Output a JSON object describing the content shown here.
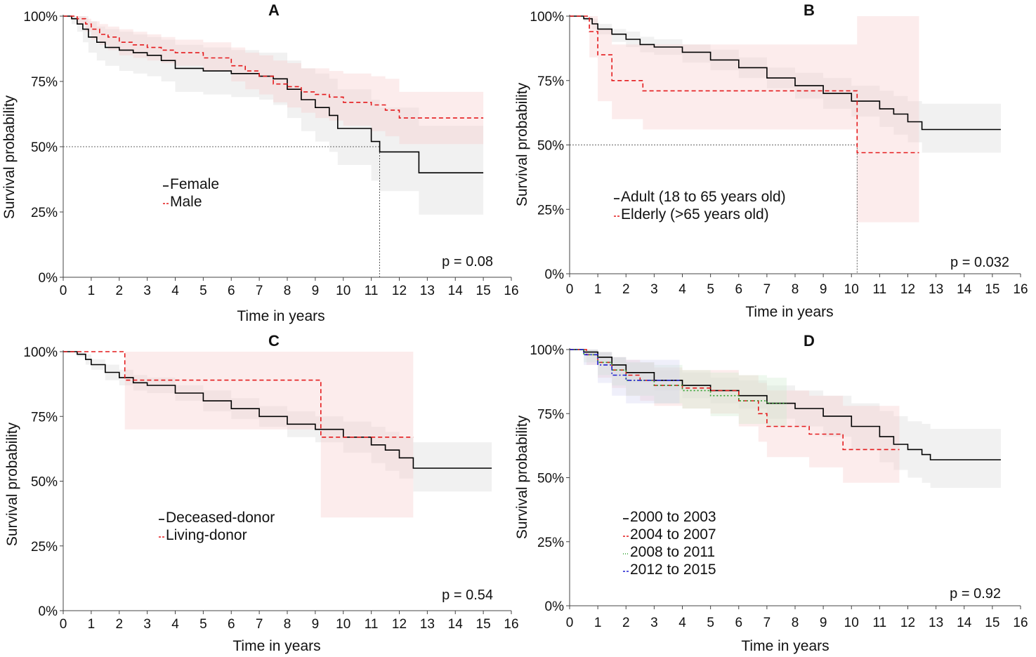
{
  "chart_data": [
    {
      "type": "line",
      "subtype": "kaplan-meier",
      "panel": "A",
      "xlabel": "Time in years",
      "ylabel": "Survival probability",
      "xlim": [
        0,
        16
      ],
      "ylim": [
        0,
        1
      ],
      "x_ticks": [
        "0",
        "1",
        "2",
        "3",
        "4",
        "5",
        "6",
        "7",
        "8",
        "9",
        "10",
        "11",
        "12",
        "13",
        "14",
        "15",
        "16"
      ],
      "y_ticks": [
        "0%",
        "25%",
        "50%",
        "75%",
        "100%"
      ],
      "p_value": "p = 0.08",
      "legend_position": "center-left",
      "median_guide": {
        "y": 0.5,
        "x": 11.3
      },
      "series": [
        {
          "name": "Female",
          "color": "#000000",
          "dash": "solid",
          "band_color": "#d8d8d8",
          "x": [
            0,
            0.3,
            0.5,
            0.7,
            0.9,
            1.2,
            1.5,
            2.0,
            2.5,
            3.0,
            3.5,
            4.0,
            5.0,
            6.0,
            7.0,
            7.5,
            8.0,
            8.5,
            9.0,
            9.5,
            9.8,
            10.5,
            11.0,
            11.3,
            12.0,
            12.7,
            15.0
          ],
          "y": [
            1.0,
            0.99,
            0.97,
            0.95,
            0.92,
            0.9,
            0.88,
            0.87,
            0.86,
            0.85,
            0.83,
            0.8,
            0.79,
            0.78,
            0.77,
            0.76,
            0.72,
            0.68,
            0.65,
            0.62,
            0.57,
            0.57,
            0.52,
            0.48,
            0.48,
            0.4,
            0.4
          ],
          "upper": [
            1.0,
            1.0,
            1.0,
            1.0,
            0.98,
            0.96,
            0.95,
            0.94,
            0.93,
            0.92,
            0.91,
            0.89,
            0.88,
            0.87,
            0.86,
            0.86,
            0.83,
            0.8,
            0.78,
            0.76,
            0.72,
            0.72,
            0.68,
            0.65,
            0.65,
            0.58,
            0.58
          ],
          "lower": [
            1.0,
            0.97,
            0.94,
            0.9,
            0.86,
            0.83,
            0.81,
            0.79,
            0.78,
            0.77,
            0.75,
            0.71,
            0.7,
            0.69,
            0.68,
            0.66,
            0.61,
            0.56,
            0.52,
            0.48,
            0.43,
            0.43,
            0.37,
            0.33,
            0.33,
            0.24,
            0.24
          ]
        },
        {
          "name": "Male",
          "color": "#e41a1c",
          "dash": "dashed",
          "band_color": "#f6c9c9",
          "x": [
            0,
            0.5,
            0.8,
            1.0,
            1.3,
            1.6,
            2.0,
            2.5,
            3.0,
            3.5,
            4.0,
            5.0,
            6.0,
            6.5,
            7.0,
            7.5,
            8.0,
            8.5,
            9.0,
            9.5,
            10.0,
            11.0,
            11.5,
            12.0,
            15.0
          ],
          "y": [
            1.0,
            0.99,
            0.97,
            0.95,
            0.93,
            0.92,
            0.9,
            0.89,
            0.88,
            0.87,
            0.86,
            0.84,
            0.81,
            0.79,
            0.77,
            0.74,
            0.73,
            0.71,
            0.7,
            0.69,
            0.67,
            0.66,
            0.64,
            0.61,
            0.61
          ],
          "upper": [
            1.0,
            1.0,
            0.99,
            0.98,
            0.97,
            0.96,
            0.95,
            0.94,
            0.93,
            0.92,
            0.91,
            0.9,
            0.88,
            0.86,
            0.85,
            0.83,
            0.82,
            0.8,
            0.8,
            0.79,
            0.78,
            0.77,
            0.76,
            0.71,
            0.71
          ],
          "lower": [
            1.0,
            0.97,
            0.94,
            0.91,
            0.89,
            0.87,
            0.85,
            0.84,
            0.83,
            0.82,
            0.81,
            0.79,
            0.75,
            0.72,
            0.7,
            0.67,
            0.65,
            0.63,
            0.61,
            0.6,
            0.58,
            0.56,
            0.54,
            0.51,
            0.51
          ]
        }
      ]
    },
    {
      "type": "line",
      "subtype": "kaplan-meier",
      "panel": "B",
      "xlabel": "Time in years",
      "ylabel": "Survival probability",
      "xlim": [
        0,
        16
      ],
      "ylim": [
        0,
        1
      ],
      "x_ticks": [
        "0",
        "1",
        "2",
        "3",
        "4",
        "5",
        "6",
        "7",
        "8",
        "9",
        "10",
        "11",
        "12",
        "13",
        "14",
        "15",
        "16"
      ],
      "y_ticks": [
        "0%",
        "25%",
        "50%",
        "75%",
        "100%"
      ],
      "p_value": "p = 0.032",
      "legend_position": "center-left",
      "median_guide": {
        "y": 0.5,
        "x": 10.2
      },
      "series": [
        {
          "name": "Adult (18 to 65 years old)",
          "color": "#000000",
          "dash": "solid",
          "band_color": "#d8d8d8",
          "x": [
            0,
            0.5,
            0.8,
            1.0,
            1.5,
            2.0,
            2.5,
            3.0,
            4.0,
            5.0,
            6.0,
            7.0,
            8.0,
            9.0,
            10.0,
            11.0,
            11.5,
            12.0,
            12.5,
            15.3
          ],
          "y": [
            1.0,
            0.99,
            0.97,
            0.95,
            0.93,
            0.91,
            0.89,
            0.88,
            0.86,
            0.83,
            0.8,
            0.76,
            0.73,
            0.7,
            0.67,
            0.64,
            0.62,
            0.59,
            0.56,
            0.56
          ],
          "upper": [
            1.0,
            1.0,
            0.99,
            0.97,
            0.95,
            0.94,
            0.92,
            0.91,
            0.89,
            0.87,
            0.84,
            0.8,
            0.78,
            0.76,
            0.73,
            0.71,
            0.69,
            0.67,
            0.66,
            0.66
          ],
          "lower": [
            1.0,
            0.98,
            0.95,
            0.93,
            0.9,
            0.88,
            0.86,
            0.85,
            0.82,
            0.79,
            0.76,
            0.72,
            0.68,
            0.64,
            0.61,
            0.57,
            0.54,
            0.51,
            0.47,
            0.47
          ]
        },
        {
          "name": "Elderly (>65 years old)",
          "color": "#e41a1c",
          "dash": "dashed",
          "band_color": "#f6c9c9",
          "x": [
            0,
            0.7,
            1.0,
            1.5,
            2.6,
            10.2,
            12.4
          ],
          "y": [
            1.0,
            0.94,
            0.85,
            0.75,
            0.71,
            0.47,
            0.47
          ],
          "upper": [
            1.0,
            1.0,
            0.95,
            0.89,
            0.89,
            1.0,
            1.0
          ],
          "lower": [
            1.0,
            0.84,
            0.67,
            0.6,
            0.56,
            0.2,
            0.2
          ]
        }
      ]
    },
    {
      "type": "line",
      "subtype": "kaplan-meier",
      "panel": "C",
      "xlabel": "Time in years",
      "ylabel": "Survival probability",
      "xlim": [
        0,
        16
      ],
      "ylim": [
        0,
        1
      ],
      "x_ticks": [
        "0",
        "1",
        "2",
        "3",
        "4",
        "5",
        "6",
        "7",
        "8",
        "9",
        "10",
        "11",
        "12",
        "13",
        "14",
        "15",
        "16"
      ],
      "y_ticks": [
        "0%",
        "25%",
        "50%",
        "75%",
        "100%"
      ],
      "p_value": "p = 0.54",
      "legend_position": "bottom-left",
      "series": [
        {
          "name": "Deceased-donor",
          "color": "#000000",
          "dash": "solid",
          "band_color": "#d8d8d8",
          "x": [
            0,
            0.5,
            0.8,
            1.0,
            1.5,
            2.0,
            2.5,
            3.0,
            4.0,
            5.0,
            6.0,
            7.0,
            8.0,
            9.0,
            10.0,
            11.0,
            11.5,
            12.0,
            12.5,
            15.3
          ],
          "y": [
            1.0,
            0.99,
            0.97,
            0.95,
            0.92,
            0.9,
            0.88,
            0.87,
            0.84,
            0.81,
            0.78,
            0.75,
            0.72,
            0.7,
            0.67,
            0.64,
            0.62,
            0.59,
            0.55,
            0.55
          ],
          "upper": [
            1.0,
            1.0,
            0.99,
            0.97,
            0.95,
            0.93,
            0.91,
            0.9,
            0.87,
            0.85,
            0.82,
            0.79,
            0.77,
            0.75,
            0.73,
            0.71,
            0.69,
            0.67,
            0.65,
            0.65
          ],
          "lower": [
            1.0,
            0.98,
            0.95,
            0.93,
            0.89,
            0.87,
            0.85,
            0.84,
            0.81,
            0.77,
            0.74,
            0.71,
            0.67,
            0.65,
            0.61,
            0.57,
            0.54,
            0.51,
            0.46,
            0.46
          ]
        },
        {
          "name": "Living-donor",
          "color": "#e41a1c",
          "dash": "dashed",
          "band_color": "#f6c9c9",
          "x": [
            0,
            2.2,
            9.2,
            12.5
          ],
          "y": [
            1.0,
            0.89,
            0.67,
            0.67
          ],
          "upper": [
            1.0,
            1.0,
            1.0,
            1.0
          ],
          "lower": [
            1.0,
            0.7,
            0.36,
            0.36
          ]
        }
      ]
    },
    {
      "type": "line",
      "subtype": "kaplan-meier",
      "panel": "D",
      "xlabel": "Time in years",
      "ylabel": "Survival probability",
      "xlim": [
        0,
        16
      ],
      "ylim": [
        0,
        1
      ],
      "x_ticks": [
        "0",
        "1",
        "2",
        "3",
        "4",
        "5",
        "6",
        "7",
        "8",
        "9",
        "10",
        "11",
        "12",
        "13",
        "14",
        "15",
        "16"
      ],
      "y_ticks": [
        "0%",
        "25%",
        "50%",
        "75%",
        "100%"
      ],
      "p_value": "p = 0.92",
      "legend_position": "bottom-left",
      "series": [
        {
          "name": "2000 to 2003",
          "color": "#000000",
          "dash": "solid",
          "band_color": "#d8d8d8",
          "x": [
            0,
            0.5,
            1.0,
            1.5,
            2.0,
            3.0,
            4.0,
            5.0,
            6.0,
            7.0,
            8.0,
            9.0,
            10.0,
            11.0,
            11.5,
            12.0,
            12.5,
            12.8,
            15.3
          ],
          "y": [
            1.0,
            0.99,
            0.97,
            0.94,
            0.91,
            0.88,
            0.86,
            0.84,
            0.82,
            0.79,
            0.77,
            0.74,
            0.7,
            0.66,
            0.63,
            0.61,
            0.59,
            0.57,
            0.57
          ],
          "upper": [
            1.0,
            1.0,
            0.99,
            0.97,
            0.95,
            0.92,
            0.91,
            0.89,
            0.88,
            0.86,
            0.84,
            0.82,
            0.79,
            0.76,
            0.74,
            0.72,
            0.71,
            0.69,
            0.69
          ],
          "lower": [
            1.0,
            0.98,
            0.94,
            0.9,
            0.87,
            0.84,
            0.81,
            0.79,
            0.77,
            0.73,
            0.7,
            0.66,
            0.61,
            0.56,
            0.53,
            0.5,
            0.48,
            0.46,
            0.46
          ]
        },
        {
          "name": "2004 to 2007",
          "color": "#e41a1c",
          "dash": "dashed",
          "band_color": "#f6c9c9",
          "x": [
            0,
            0.6,
            1.0,
            1.5,
            2.0,
            2.5,
            3.0,
            4.0,
            5.0,
            6.0,
            6.7,
            7.0,
            8.5,
            9.7,
            11.7
          ],
          "y": [
            1.0,
            0.98,
            0.95,
            0.92,
            0.9,
            0.88,
            0.86,
            0.85,
            0.84,
            0.8,
            0.75,
            0.7,
            0.67,
            0.61,
            0.61
          ],
          "upper": [
            1.0,
            1.0,
            0.99,
            0.97,
            0.96,
            0.95,
            0.93,
            0.92,
            0.92,
            0.9,
            0.87,
            0.84,
            0.82,
            0.78,
            0.78
          ],
          "lower": [
            1.0,
            0.94,
            0.89,
            0.85,
            0.82,
            0.8,
            0.78,
            0.77,
            0.75,
            0.7,
            0.64,
            0.58,
            0.54,
            0.48,
            0.48
          ]
        },
        {
          "name": "2008 to 2011",
          "color": "#2ca02c",
          "dash": "dotted",
          "band_color": "#cdeccd",
          "x": [
            0,
            0.5,
            1.0,
            1.5,
            2.0,
            3.0,
            4.0,
            5.0,
            6.0,
            7.0,
            7.7
          ],
          "y": [
            1.0,
            0.98,
            0.95,
            0.92,
            0.88,
            0.86,
            0.84,
            0.82,
            0.8,
            0.79,
            0.79
          ],
          "upper": [
            1.0,
            1.0,
            0.99,
            0.97,
            0.95,
            0.94,
            0.92,
            0.91,
            0.9,
            0.89,
            0.89
          ],
          "lower": [
            1.0,
            0.95,
            0.9,
            0.86,
            0.82,
            0.79,
            0.77,
            0.74,
            0.71,
            0.7,
            0.7
          ]
        },
        {
          "name": "2012 to 2015",
          "color": "#1f1fd0",
          "dash": "dashdot",
          "band_color": "#d2d2f2",
          "x": [
            0,
            0.5,
            1.0,
            1.5,
            2.0,
            3.0,
            3.5,
            3.9
          ],
          "y": [
            1.0,
            0.98,
            0.94,
            0.9,
            0.88,
            0.88,
            0.88,
            0.88
          ],
          "upper": [
            1.0,
            1.0,
            0.99,
            0.97,
            0.96,
            0.96,
            0.96,
            0.96
          ],
          "lower": [
            1.0,
            0.94,
            0.87,
            0.82,
            0.79,
            0.79,
            0.79,
            0.79
          ]
        }
      ]
    }
  ]
}
